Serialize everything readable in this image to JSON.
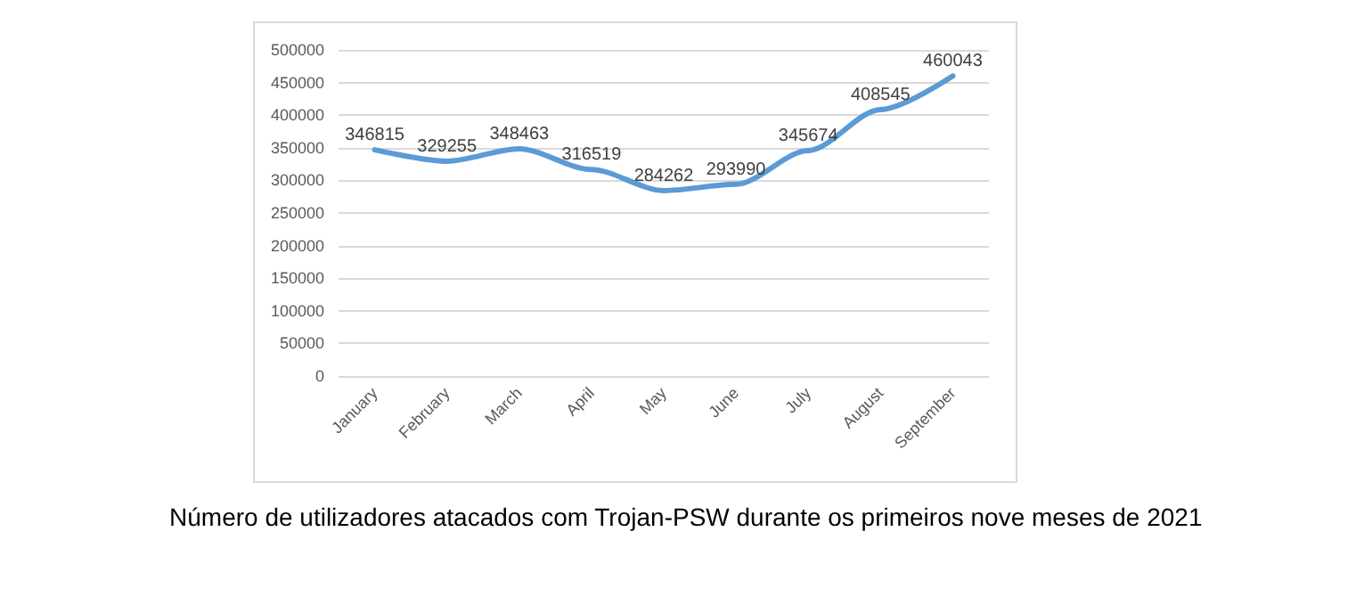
{
  "chart_data": {
    "type": "line",
    "categories": [
      "January",
      "February",
      "March",
      "April",
      "May",
      "June",
      "July",
      "August",
      "September"
    ],
    "series": [
      {
        "color": "#5b9bd5",
        "values": [
          346815,
          329255,
          348463,
          316519,
          284262,
          293990,
          345674,
          408545,
          460043
        ]
      }
    ],
    "ylim": [
      0,
      500000
    ],
    "yticks": [
      0,
      50000,
      100000,
      150000,
      200000,
      250000,
      300000,
      350000,
      400000,
      450000,
      500000
    ],
    "grid": "y",
    "marker": "none",
    "data_labels": true,
    "annotations": [
      "Número de utilizadores atacados com Trojan-PSW durante os primeiros nove meses de 2021"
    ]
  }
}
